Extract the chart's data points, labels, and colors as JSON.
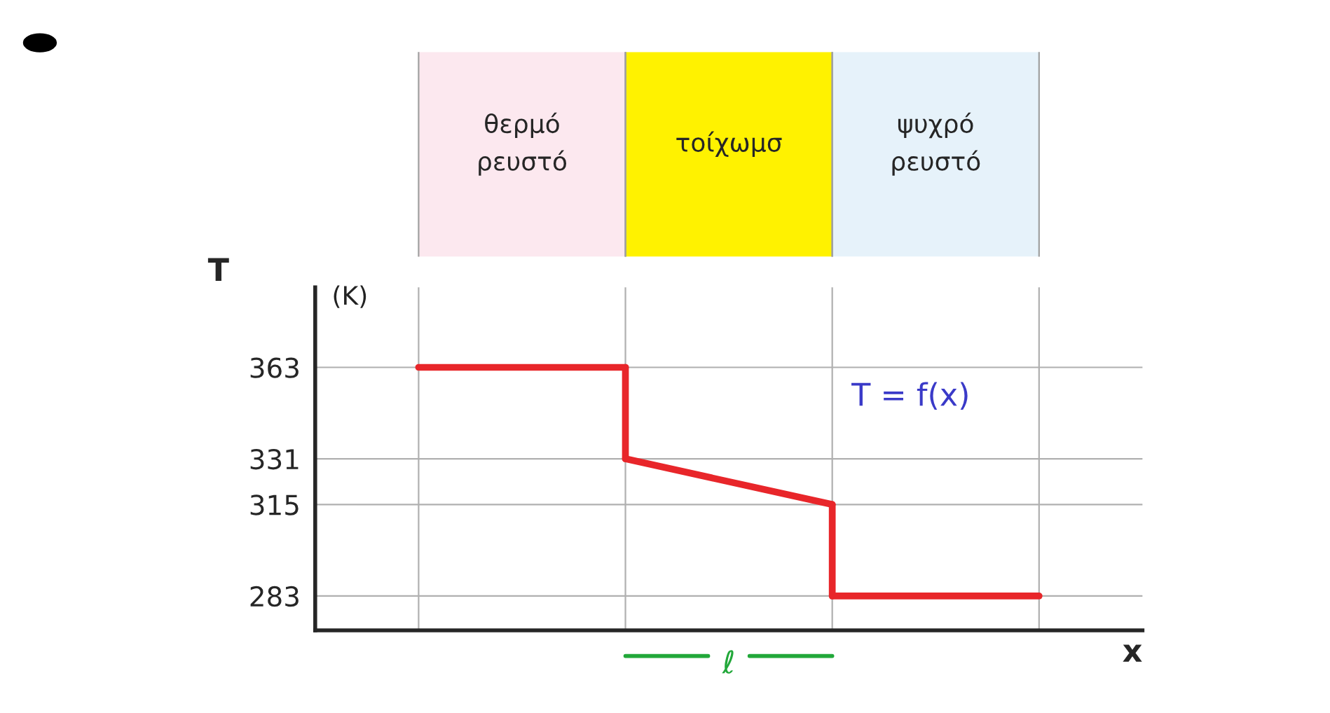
{
  "chart_data": [
    {
      "type": "other",
      "categories": [
        "θερμό\nρευστό",
        "τοίχωμσ",
        "ψυχρό\nρευστό"
      ],
      "colors": [
        "#fce8ef",
        "#fff200",
        "#e6f2fa"
      ]
    },
    {
      "type": "line",
      "xlabel": "x",
      "ylabel": "T",
      "categories": [
        null,
        null,
        null,
        null
      ],
      "series": [
        {
          "color": "#e8262a",
          "values": [
            363,
            363,
            null,
            null
          ]
        },
        {
          "color": "#e8262a",
          "values": [
            null,
            331,
            315,
            null
          ]
        },
        {
          "color": "#e8262a",
          "values": [
            null,
            null,
            283,
            283
          ]
        }
      ],
      "ylim": [
        271,
        391
      ],
      "yticks": [
        283,
        315,
        331,
        363
      ],
      "grid": true,
      "tick_labels": "y",
      "marker": "none",
      "line_style": "solid",
      "annotations": [
        "(K)",
        "T = f(x)",
        "ℓ"
      ]
    }
  ]
}
